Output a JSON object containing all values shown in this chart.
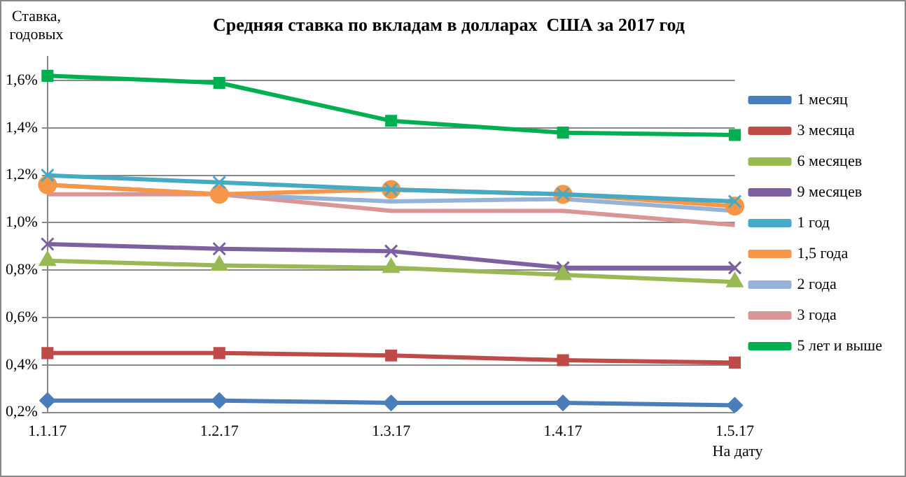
{
  "chart_data": {
    "type": "line",
    "title": "Средняя ставка по вкладам в долларах  США за 2017 год",
    "ylabel": "Ставка, годовых",
    "xlabel": "На дату",
    "categories": [
      "1.1.17",
      "1.2.17",
      "1.3.17",
      "1.4.17",
      "1.5.17"
    ],
    "ylim": [
      0.2,
      1.7
    ],
    "yticks": [
      {
        "value": 0.2,
        "label": "0,2%"
      },
      {
        "value": 0.4,
        "label": "0,4%"
      },
      {
        "value": 0.6,
        "label": "0,6%"
      },
      {
        "value": 0.8,
        "label": "0,8%"
      },
      {
        "value": 1.0,
        "label": "1,0%"
      },
      {
        "value": 1.2,
        "label": "1,2%"
      },
      {
        "value": 1.4,
        "label": "1,4%"
      },
      {
        "value": 1.6,
        "label": "1,6%"
      }
    ],
    "grid": "y",
    "legend": "right",
    "series": [
      {
        "name": "1 месяц",
        "color": "#4a7ebb",
        "marker": "diamond",
        "values": [
          0.25,
          0.25,
          0.24,
          0.24,
          0.23
        ]
      },
      {
        "name": "3 месяца",
        "color": "#be4b48",
        "marker": "square",
        "values": [
          0.45,
          0.45,
          0.44,
          0.42,
          0.41
        ]
      },
      {
        "name": "6 месяцев",
        "color": "#98b954",
        "marker": "triangle",
        "values": [
          0.84,
          0.82,
          0.81,
          0.78,
          0.75
        ]
      },
      {
        "name": "9 месяцев",
        "color": "#7d60a0",
        "marker": "cross",
        "values": [
          0.91,
          0.89,
          0.88,
          0.81,
          0.81
        ]
      },
      {
        "name": "1 год",
        "color": "#46aac5",
        "marker": "cross",
        "values": [
          1.2,
          1.17,
          1.14,
          1.12,
          1.09
        ]
      },
      {
        "name": "1,5 года",
        "color": "#f79646",
        "marker": "circle",
        "values": [
          1.16,
          1.12,
          1.14,
          1.12,
          1.07
        ]
      },
      {
        "name": "2 года",
        "color": "#95b3d7",
        "marker": "none",
        "values": [
          1.16,
          1.12,
          1.09,
          1.1,
          1.05
        ]
      },
      {
        "name": "3 года",
        "color": "#d99694",
        "marker": "none",
        "values": [
          1.12,
          1.12,
          1.05,
          1.05,
          0.99
        ]
      },
      {
        "name": "5 лет и выше",
        "color": "#00b050",
        "marker": "square",
        "values": [
          1.62,
          1.59,
          1.43,
          1.38,
          1.37
        ]
      }
    ]
  }
}
